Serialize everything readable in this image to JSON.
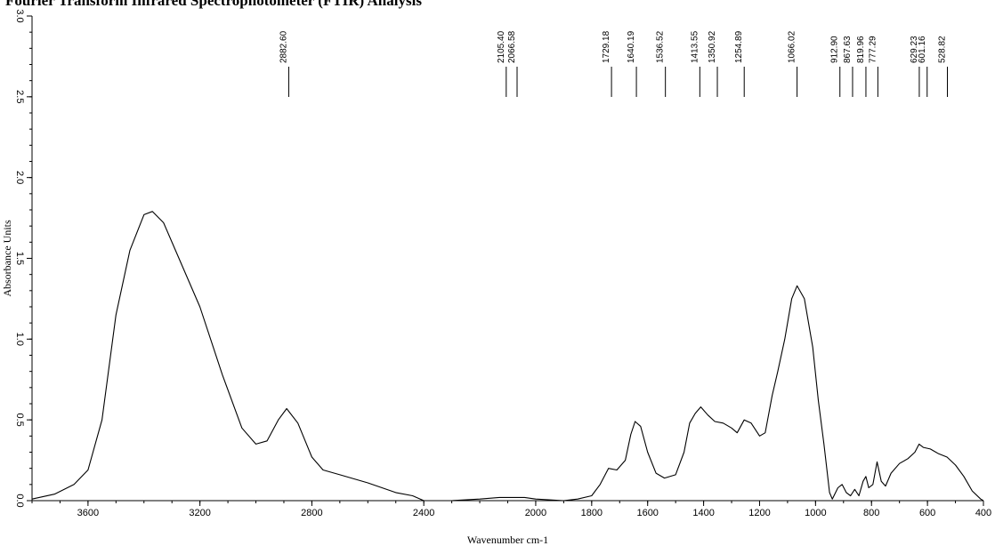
{
  "caption": "Fourier Transform Infrared Spectrophotometer (FTIR) Analysis",
  "chart_data": {
    "type": "line",
    "title": "",
    "xlabel": "Wavenumber cm-1",
    "ylabel": "Absorbance Units",
    "xlim": [
      3800,
      400
    ],
    "x_reversed": true,
    "ylim": [
      0.0,
      3.0
    ],
    "x_ticks": [
      {
        "value": 3600,
        "label": "3600"
      },
      {
        "value": 3200,
        "label": "3200"
      },
      {
        "value": 2800,
        "label": "2800"
      },
      {
        "value": 2400,
        "label": "2400"
      },
      {
        "value": 2000,
        "label": "2000"
      },
      {
        "value": 1800,
        "label": "1800"
      },
      {
        "value": 1600,
        "label": "1600"
      },
      {
        "value": 1400,
        "label": "1400"
      },
      {
        "value": 1200,
        "label": "1200"
      },
      {
        "value": 1000,
        "label": "1000"
      },
      {
        "value": 800,
        "label": "800"
      },
      {
        "value": 600,
        "label": "600"
      },
      {
        "value": 400,
        "label": "400"
      }
    ],
    "y_ticks": [
      {
        "value": 0.0,
        "label": "0.0"
      },
      {
        "value": 0.5,
        "label": "0.5"
      },
      {
        "value": 1.0,
        "label": "1.0"
      },
      {
        "value": 1.5,
        "label": "1.5"
      },
      {
        "value": 2.0,
        "label": "2.0"
      },
      {
        "value": 2.5,
        "label": "2.5"
      },
      {
        "value": 3.0,
        "label": "3.0"
      }
    ],
    "grid": false,
    "peaks": [
      {
        "wavenumber": 2882.6,
        "label": "2882.60"
      },
      {
        "wavenumber": 2105.4,
        "label": "2105.40"
      },
      {
        "wavenumber": 2066.58,
        "label": "2066.58"
      },
      {
        "wavenumber": 1729.18,
        "label": "1729.18"
      },
      {
        "wavenumber": 1640.19,
        "label": "1640.19"
      },
      {
        "wavenumber": 1536.52,
        "label": "1536.52"
      },
      {
        "wavenumber": 1413.55,
        "label": "1413.55"
      },
      {
        "wavenumber": 1350.92,
        "label": "1350.92"
      },
      {
        "wavenumber": 1254.89,
        "label": "1254.89"
      },
      {
        "wavenumber": 1066.02,
        "label": "1066.02"
      },
      {
        "wavenumber": 912.9,
        "label": "912.90"
      },
      {
        "wavenumber": 867.63,
        "label": "867.63"
      },
      {
        "wavenumber": 819.96,
        "label": "819.96"
      },
      {
        "wavenumber": 777.29,
        "label": "777.29"
      },
      {
        "wavenumber": 629.23,
        "label": "629.23"
      },
      {
        "wavenumber": 601.16,
        "label": "601.16"
      },
      {
        "wavenumber": 528.82,
        "label": "528.82"
      }
    ],
    "series": [
      {
        "color": "#000000",
        "points": [
          [
            3800,
            0.01
          ],
          [
            3720,
            0.04
          ],
          [
            3650,
            0.1
          ],
          [
            3600,
            0.19
          ],
          [
            3550,
            0.5
          ],
          [
            3500,
            1.15
          ],
          [
            3450,
            1.55
          ],
          [
            3400,
            1.77
          ],
          [
            3370,
            1.79
          ],
          [
            3330,
            1.72
          ],
          [
            3280,
            1.52
          ],
          [
            3200,
            1.2
          ],
          [
            3120,
            0.78
          ],
          [
            3050,
            0.45
          ],
          [
            3000,
            0.35
          ],
          [
            2960,
            0.37
          ],
          [
            2920,
            0.5
          ],
          [
            2890,
            0.57
          ],
          [
            2850,
            0.48
          ],
          [
            2800,
            0.27
          ],
          [
            2760,
            0.19
          ],
          [
            2700,
            0.16
          ],
          [
            2600,
            0.11
          ],
          [
            2500,
            0.05
          ],
          [
            2440,
            0.03
          ],
          [
            2400,
            0.0
          ],
          [
            2300,
            0.0
          ],
          [
            2200,
            0.01
          ],
          [
            2130,
            0.02
          ],
          [
            2080,
            0.02
          ],
          [
            2040,
            0.02
          ],
          [
            2000,
            0.01
          ],
          [
            1900,
            0.0
          ],
          [
            1850,
            0.01
          ],
          [
            1800,
            0.03
          ],
          [
            1770,
            0.1
          ],
          [
            1740,
            0.2
          ],
          [
            1710,
            0.19
          ],
          [
            1680,
            0.25
          ],
          [
            1660,
            0.41
          ],
          [
            1645,
            0.49
          ],
          [
            1625,
            0.46
          ],
          [
            1600,
            0.3
          ],
          [
            1570,
            0.17
          ],
          [
            1540,
            0.14
          ],
          [
            1500,
            0.16
          ],
          [
            1470,
            0.3
          ],
          [
            1450,
            0.48
          ],
          [
            1430,
            0.54
          ],
          [
            1410,
            0.58
          ],
          [
            1385,
            0.53
          ],
          [
            1360,
            0.49
          ],
          [
            1330,
            0.48
          ],
          [
            1300,
            0.45
          ],
          [
            1280,
            0.42
          ],
          [
            1255,
            0.5
          ],
          [
            1230,
            0.48
          ],
          [
            1200,
            0.4
          ],
          [
            1180,
            0.42
          ],
          [
            1155,
            0.65
          ],
          [
            1135,
            0.8
          ],
          [
            1110,
            1.0
          ],
          [
            1085,
            1.25
          ],
          [
            1066,
            1.33
          ],
          [
            1040,
            1.25
          ],
          [
            1010,
            0.95
          ],
          [
            990,
            0.62
          ],
          [
            970,
            0.35
          ],
          [
            950,
            0.05
          ],
          [
            940,
            0.01
          ],
          [
            920,
            0.08
          ],
          [
            905,
            0.1
          ],
          [
            890,
            0.05
          ],
          [
            875,
            0.03
          ],
          [
            860,
            0.07
          ],
          [
            845,
            0.03
          ],
          [
            830,
            0.12
          ],
          [
            820,
            0.15
          ],
          [
            810,
            0.08
          ],
          [
            795,
            0.1
          ],
          [
            780,
            0.24
          ],
          [
            765,
            0.12
          ],
          [
            750,
            0.09
          ],
          [
            730,
            0.17
          ],
          [
            700,
            0.23
          ],
          [
            670,
            0.26
          ],
          [
            645,
            0.3
          ],
          [
            630,
            0.35
          ],
          [
            615,
            0.33
          ],
          [
            590,
            0.32
          ],
          [
            560,
            0.29
          ],
          [
            530,
            0.27
          ],
          [
            500,
            0.22
          ],
          [
            470,
            0.15
          ],
          [
            440,
            0.06
          ],
          [
            410,
            0.01
          ],
          [
            400,
            0.0
          ]
        ]
      }
    ]
  }
}
